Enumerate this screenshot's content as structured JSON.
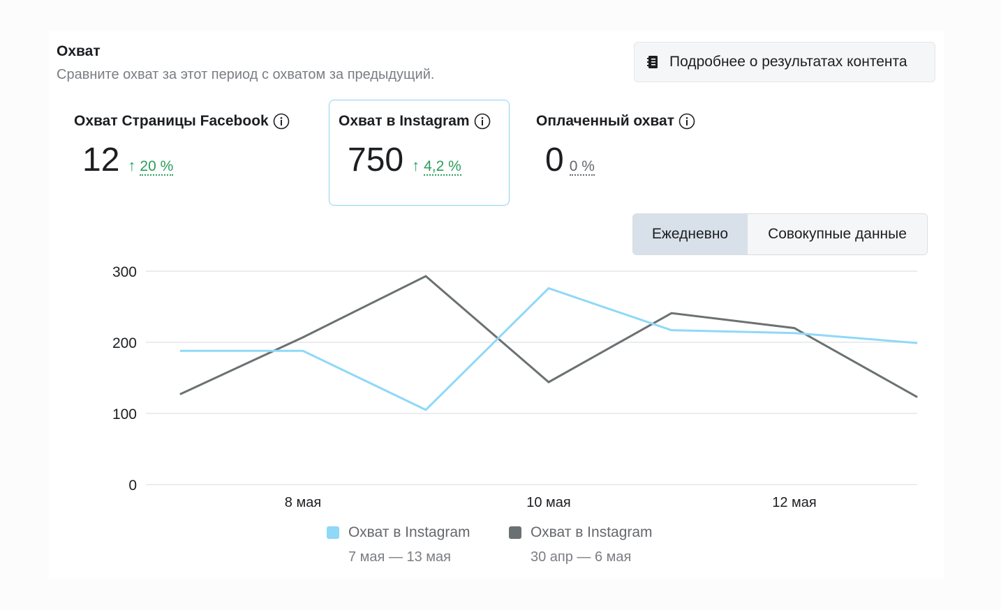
{
  "header": {
    "title": "Охват",
    "subtitle": "Сравните охват за этот период с охватом за предыдущий.",
    "content_button_label": "Подробнее о результатах контента"
  },
  "metrics": [
    {
      "label": "Охват Страницы Facebook",
      "value": "12",
      "trend": "↑",
      "change": "20 %",
      "selected": false
    },
    {
      "label": "Охват в Instagram",
      "value": "750",
      "trend": "↑",
      "change": "4,2 %",
      "selected": true
    },
    {
      "label": "Оплаченный охват",
      "value": "0",
      "trend": "",
      "change": "0 %",
      "selected": false
    }
  ],
  "toggle": {
    "daily": "Ежедневно",
    "cumulative": "Совокупные данные",
    "active": "daily"
  },
  "chart_data": {
    "type": "line",
    "y_ticks": [
      "300",
      "200",
      "100",
      "0"
    ],
    "ylim": [
      0,
      300
    ],
    "x_tick_labels": [
      {
        "label": "8 мая",
        "index": 1
      },
      {
        "label": "10 мая",
        "index": 3
      },
      {
        "label": "12 мая",
        "index": 5
      }
    ],
    "point_count": 7,
    "grid": true,
    "legend_position": "bottom",
    "series": [
      {
        "name": "Охват в Instagram",
        "range": "7 мая — 13 мая",
        "color": "#8fd8f8",
        "values": [
          188,
          188,
          105,
          276,
          217,
          213,
          199
        ]
      },
      {
        "name": "Охват в Instagram",
        "range": "30 апр — 6 мая",
        "color": "#6b7172",
        "values": [
          127,
          207,
          293,
          144,
          241,
          220,
          123
        ]
      }
    ]
  },
  "colors": {
    "accent_border": "#8ed1f1",
    "positive": "#2a9d5b",
    "toggle_active_bg": "#d8e1ea"
  },
  "icons": {
    "content_button": "notebook-icon",
    "info": "info-circle-icon"
  }
}
